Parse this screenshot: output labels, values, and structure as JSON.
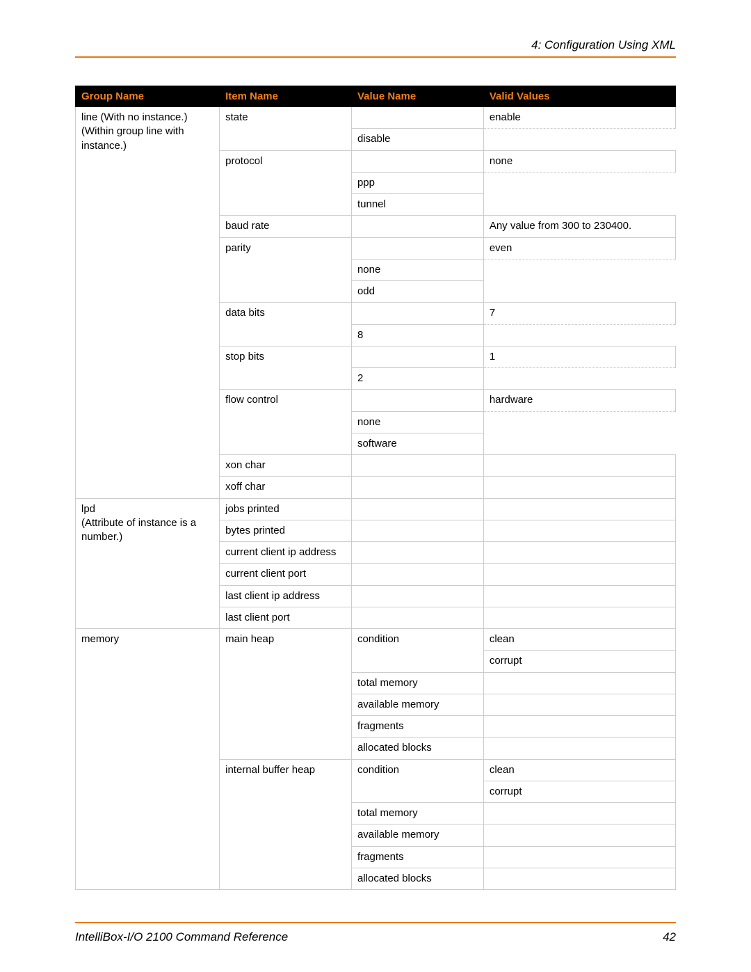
{
  "header": {
    "chapter_title": "4: Configuration Using XML"
  },
  "colors": {
    "accent_rule": "#e97719",
    "header_bg": "#000000",
    "header_text": "#f07f1c",
    "cell_border": "#cccccc",
    "body_text": "#000000",
    "page_bg": "#ffffff"
  },
  "table": {
    "columns": [
      "Group Name",
      "Item Name",
      "Value Name",
      "Valid Values"
    ],
    "rows": [
      {
        "group": "line (With no instance.) (Within group  line  with instance.)",
        "item": "state",
        "value": "",
        "valid": "enable",
        "group_rowspan": 17,
        "item_rowspan": 2
      },
      {
        "valid": "disable"
      },
      {
        "item": "protocol",
        "value": "",
        "valid": "none",
        "item_rowspan": 3
      },
      {
        "valid": "ppp"
      },
      {
        "valid": "tunnel"
      },
      {
        "item": "baud rate",
        "value": "",
        "valid": "Any value from 300 to 230400."
      },
      {
        "item": "parity",
        "value": "",
        "valid": "even",
        "item_rowspan": 3
      },
      {
        "valid": "none"
      },
      {
        "valid": "odd"
      },
      {
        "item": "data bits",
        "value": "",
        "valid": "7",
        "item_rowspan": 2
      },
      {
        "valid": "8"
      },
      {
        "item": "stop bits",
        "value": "",
        "valid": "1",
        "item_rowspan": 2
      },
      {
        "valid": "2"
      },
      {
        "item": "flow control",
        "value": "",
        "valid": "hardware",
        "item_rowspan": 3
      },
      {
        "valid": "none"
      },
      {
        "valid": "software"
      },
      {
        "item": "xon char",
        "value": "",
        "valid": ""
      },
      {
        "item": "xoff char",
        "value": "",
        "valid": "",
        "group_extra_row": true
      },
      {
        "group": "lpd\n(Attribute of  instance  is a number.)",
        "item": "jobs printed",
        "value": "",
        "valid": "",
        "group_rowspan": 6
      },
      {
        "item": "bytes printed",
        "value": "",
        "valid": ""
      },
      {
        "item": "current client ip address",
        "value": "",
        "valid": ""
      },
      {
        "item": "current client port",
        "value": "",
        "valid": ""
      },
      {
        "item": "last client ip address",
        "value": "",
        "valid": ""
      },
      {
        "item": "last client port",
        "value": "",
        "valid": ""
      },
      {
        "group": "memory",
        "item": "main heap",
        "value": "condition",
        "valid": "clean",
        "group_rowspan": 12,
        "item_rowspan": 6,
        "value_rowspan": 2
      },
      {
        "valid": "corrupt"
      },
      {
        "value": "total memory",
        "valid": ""
      },
      {
        "value": "available memory",
        "valid": ""
      },
      {
        "value": "fragments",
        "valid": ""
      },
      {
        "value": "allocated blocks",
        "valid": ""
      },
      {
        "item": "internal buffer heap",
        "value": "condition",
        "valid": "clean",
        "item_rowspan": 6,
        "value_rowspan": 2
      },
      {
        "valid": "corrupt"
      },
      {
        "value": "total memory",
        "valid": ""
      },
      {
        "value": "available memory",
        "valid": ""
      },
      {
        "value": "fragments",
        "valid": ""
      },
      {
        "value": "allocated blocks",
        "valid": ""
      }
    ]
  },
  "footer": {
    "doc_title": "IntelliBox-I/O 2100 Command Reference",
    "page_number": "42"
  }
}
